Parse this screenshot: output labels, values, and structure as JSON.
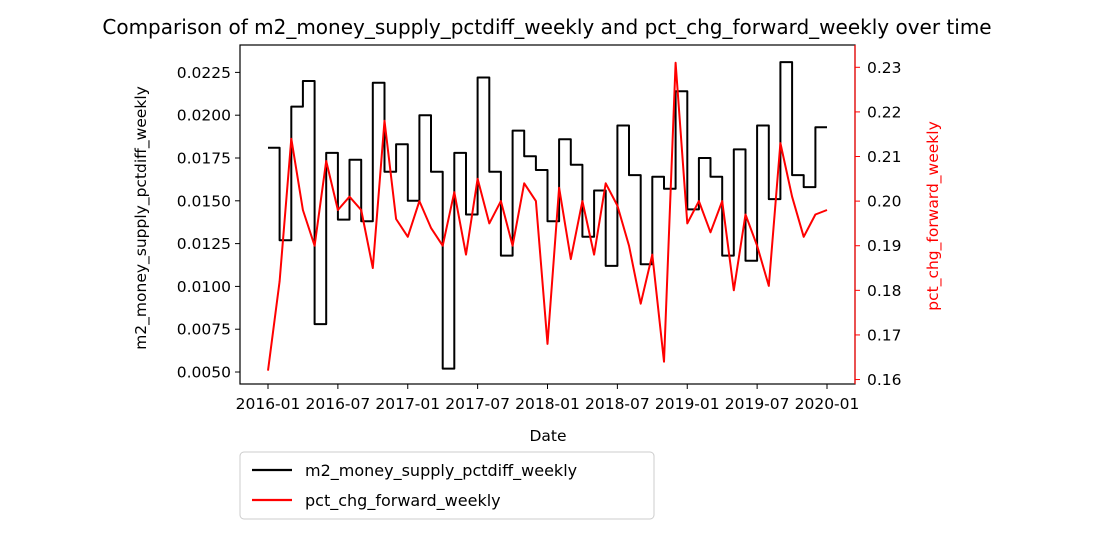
{
  "chart_data": {
    "type": "line",
    "title": "Comparison of m2_money_supply_pctdiff_weekly and pct_chg_forward_weekly over time",
    "xlabel": "Date",
    "ylabel_left": "m2_money_supply_pctdiff_weekly",
    "ylabel_right": "pct_chg_forward_weekly",
    "xlim": [
      "2016-01",
      "2020-01"
    ],
    "ylim_left": [
      0.0043,
      0.0241
    ],
    "ylim_right": [
      0.159,
      0.235
    ],
    "x_ticks": [
      "2016-01",
      "2016-07",
      "2017-01",
      "2017-07",
      "2018-01",
      "2018-07",
      "2019-01",
      "2019-07",
      "2020-01"
    ],
    "y_ticks_left": [
      "0.0050",
      "0.0075",
      "0.0100",
      "0.0125",
      "0.0150",
      "0.0175",
      "0.0200",
      "0.0225"
    ],
    "y_ticks_right": [
      "0.16",
      "0.17",
      "0.18",
      "0.19",
      "0.20",
      "0.21",
      "0.22",
      "0.23"
    ],
    "legend": "below-left",
    "grid": false,
    "colors": {
      "left_series": "#000000",
      "right_series": "#ff0000",
      "right_axis": "#ff0000"
    },
    "series": [
      {
        "name": "m2_money_supply_pctdiff_weekly",
        "axis": "left",
        "style": "step",
        "x": [
          "2016-01",
          "2016-02",
          "2016-03",
          "2016-04",
          "2016-05",
          "2016-06",
          "2016-07",
          "2016-08",
          "2016-09",
          "2016-10",
          "2016-11",
          "2016-12",
          "2017-01",
          "2017-02",
          "2017-03",
          "2017-04",
          "2017-05",
          "2017-06",
          "2017-07",
          "2017-08",
          "2017-09",
          "2017-10",
          "2017-11",
          "2017-12",
          "2018-01",
          "2018-02",
          "2018-03",
          "2018-04",
          "2018-05",
          "2018-06",
          "2018-07",
          "2018-08",
          "2018-09",
          "2018-10",
          "2018-11",
          "2018-12",
          "2019-01",
          "2019-02",
          "2019-03",
          "2019-04",
          "2019-05",
          "2019-06",
          "2019-07",
          "2019-08",
          "2019-09",
          "2019-10",
          "2019-11",
          "2019-12",
          "2020-01"
        ],
        "y": [
          0.0181,
          0.0127,
          0.0205,
          0.022,
          0.0078,
          0.0178,
          0.0139,
          0.0174,
          0.0138,
          0.0219,
          0.0167,
          0.0183,
          0.015,
          0.02,
          0.0167,
          0.0052,
          0.0178,
          0.0142,
          0.0222,
          0.0167,
          0.0118,
          0.0191,
          0.0176,
          0.0168,
          0.0138,
          0.0186,
          0.0171,
          0.0129,
          0.0156,
          0.0112,
          0.0194,
          0.0165,
          0.0113,
          0.0164,
          0.0157,
          0.0214,
          0.0145,
          0.0175,
          0.0164,
          0.0118,
          0.018,
          0.0115,
          0.0194,
          0.0151,
          0.0231,
          0.0165,
          0.0158,
          0.0193,
          0.0193
        ]
      },
      {
        "name": "pct_chg_forward_weekly",
        "axis": "right",
        "style": "line",
        "x": [
          "2016-01",
          "2016-02",
          "2016-03",
          "2016-04",
          "2016-05",
          "2016-06",
          "2016-07",
          "2016-08",
          "2016-09",
          "2016-10",
          "2016-11",
          "2016-12",
          "2017-01",
          "2017-02",
          "2017-03",
          "2017-04",
          "2017-05",
          "2017-06",
          "2017-07",
          "2017-08",
          "2017-09",
          "2017-10",
          "2017-11",
          "2017-12",
          "2018-01",
          "2018-02",
          "2018-03",
          "2018-04",
          "2018-05",
          "2018-06",
          "2018-07",
          "2018-08",
          "2018-09",
          "2018-10",
          "2018-11",
          "2018-12",
          "2019-01",
          "2019-02",
          "2019-03",
          "2019-04",
          "2019-05",
          "2019-06",
          "2019-07",
          "2019-08",
          "2019-09",
          "2019-10",
          "2019-11",
          "2019-12",
          "2020-01"
        ],
        "y": [
          0.162,
          0.182,
          0.214,
          0.198,
          0.19,
          0.209,
          0.198,
          0.201,
          0.198,
          0.185,
          0.218,
          0.196,
          0.192,
          0.2,
          0.194,
          0.19,
          0.202,
          0.188,
          0.205,
          0.195,
          0.2,
          0.19,
          0.204,
          0.2,
          0.168,
          0.203,
          0.187,
          0.2,
          0.188,
          0.204,
          0.199,
          0.19,
          0.177,
          0.188,
          0.164,
          0.231,
          0.195,
          0.2,
          0.193,
          0.2,
          0.18,
          0.197,
          0.19,
          0.181,
          0.213,
          0.201,
          0.192,
          0.197,
          0.198
        ]
      }
    ]
  }
}
